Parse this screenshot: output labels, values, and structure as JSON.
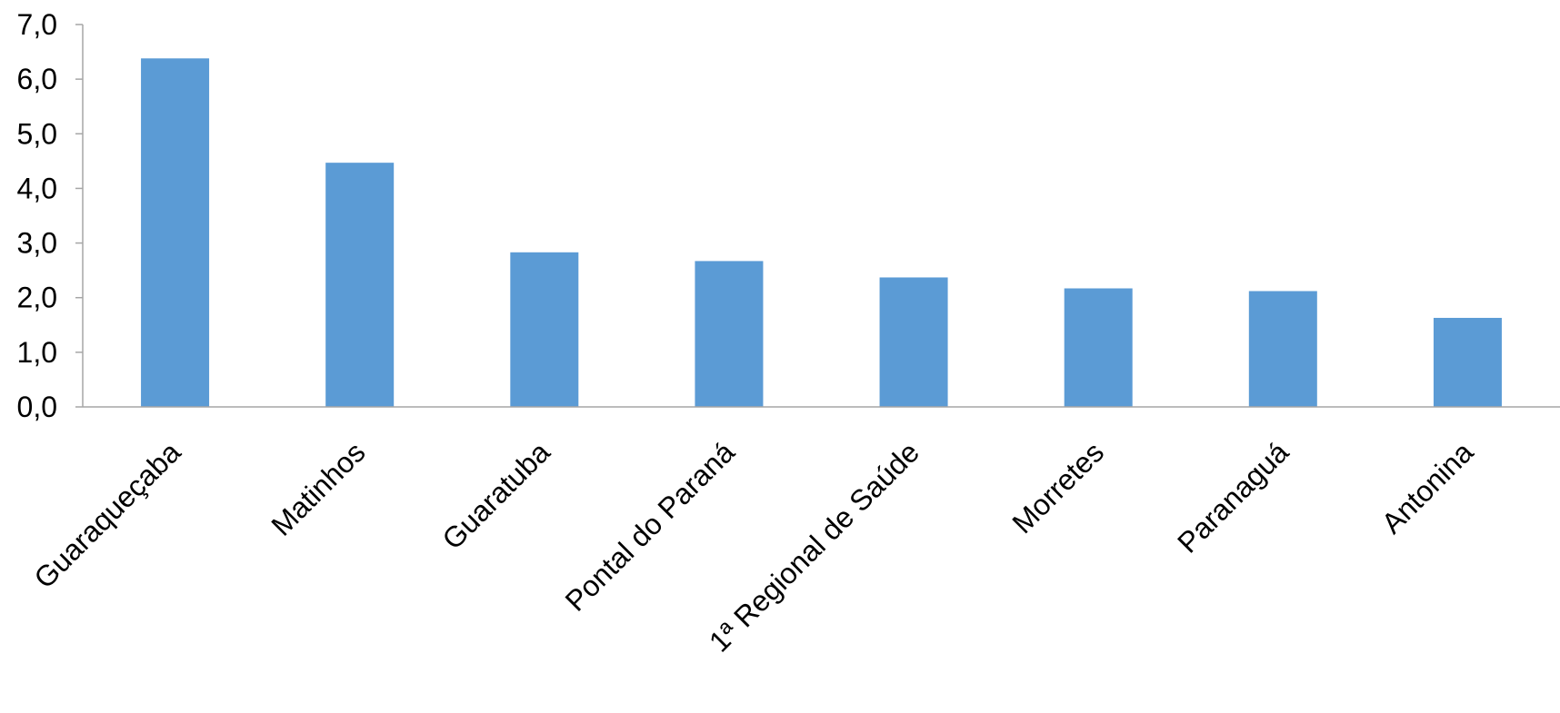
{
  "chart_data": {
    "type": "bar",
    "categories": [
      "Guaraqueçaba",
      "Matinhos",
      "Guaratuba",
      "Pontal do Paraná",
      "1ª Regional de Saúde",
      "Morretes",
      "Paranaguá",
      "Antonina"
    ],
    "values": [
      6.38,
      4.47,
      2.83,
      2.67,
      2.37,
      2.17,
      2.12,
      1.63
    ],
    "title": "",
    "xlabel": "",
    "ylabel": "",
    "ylim": [
      0,
      7
    ],
    "yticks": [
      "0,0",
      "1,0",
      "2,0",
      "3,0",
      "4,0",
      "5,0",
      "6,0",
      "7,0"
    ],
    "grid": false,
    "legend": "none",
    "colors": {
      "bar": "#5b9bd5",
      "axis": "#a6a6a6"
    }
  }
}
